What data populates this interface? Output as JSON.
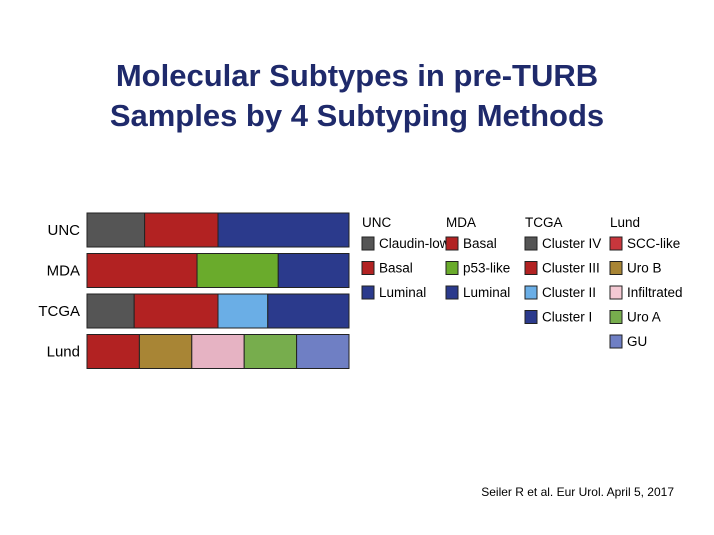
{
  "slide": {
    "title_line1": "Molecular Subtypes in pre-TURB",
    "title_line2": "Samples by 4 Subtyping Methods",
    "citation": "Seiler R et al. Eur Urol. April 5, 2017"
  },
  "chart_data": {
    "type": "bar",
    "orientation": "horizontal",
    "stacked": true,
    "normalized": true,
    "title": "",
    "xlabel": "",
    "ylabel": "",
    "grid": false,
    "legend_placement": "right",
    "categories": [
      "UNC",
      "MDA",
      "TCGA",
      "Lund"
    ],
    "methods": [
      {
        "name": "UNC",
        "segments": [
          {
            "name": "Claudin-low",
            "color": "#555555",
            "value": 0.22
          },
          {
            "name": "Basal",
            "color": "#b22222",
            "value": 0.28
          },
          {
            "name": "Luminal",
            "color": "#2b3a8c",
            "value": 0.5
          }
        ]
      },
      {
        "name": "MDA",
        "segments": [
          {
            "name": "Basal",
            "color": "#b22222",
            "value": 0.42
          },
          {
            "name": "p53-like",
            "color": "#6aab2c",
            "value": 0.31
          },
          {
            "name": "Luminal",
            "color": "#2b3a8c",
            "value": 0.27
          }
        ]
      },
      {
        "name": "TCGA",
        "segments": [
          {
            "name": "Cluster IV",
            "color": "#555555",
            "value": 0.18
          },
          {
            "name": "Cluster III",
            "color": "#b22222",
            "value": 0.32
          },
          {
            "name": "Cluster II",
            "color": "#6aaee6",
            "value": 0.19
          },
          {
            "name": "Cluster I",
            "color": "#2b3a8c",
            "value": 0.31
          }
        ]
      },
      {
        "name": "Lund",
        "segments": [
          {
            "name": "SCC-like",
            "color": "#b22222",
            "value": 0.2
          },
          {
            "name": "Uro B",
            "color": "#a88535",
            "value": 0.2
          },
          {
            "name": "Infiltrated",
            "color": "#e6b3c3",
            "value": 0.2
          },
          {
            "name": "Uro A",
            "color": "#77ad4d",
            "value": 0.2
          },
          {
            "name": "GU",
            "color": "#6f7fc4",
            "value": 0.2
          }
        ]
      }
    ],
    "legend": [
      {
        "title": "UNC",
        "items": [
          {
            "label": "Claudin-low",
            "color": "#555555"
          },
          {
            "label": "Basal",
            "color": "#b22222"
          },
          {
            "label": "Luminal",
            "color": "#2b3a8c"
          }
        ]
      },
      {
        "title": "MDA",
        "items": [
          {
            "label": "Basal",
            "color": "#b22222"
          },
          {
            "label": "p53-like",
            "color": "#6aab2c"
          },
          {
            "label": "Luminal",
            "color": "#2b3a8c"
          }
        ]
      },
      {
        "title": "TCGA",
        "items": [
          {
            "label": "Cluster IV",
            "color": "#555555"
          },
          {
            "label": "Cluster III",
            "color": "#b22222"
          },
          {
            "label": "Cluster II",
            "color": "#6aaee6"
          },
          {
            "label": "Cluster I",
            "color": "#2b3a8c"
          }
        ]
      },
      {
        "title": "Lund",
        "items": [
          {
            "label": "SCC-like",
            "color": "#c8363c"
          },
          {
            "label": "Uro B",
            "color": "#a88535"
          },
          {
            "label": "Infiltrated",
            "color": "#f4c9d3"
          },
          {
            "label": "Uro A",
            "color": "#77ad4d"
          },
          {
            "label": "GU",
            "color": "#6f7fc4"
          }
        ]
      }
    ]
  }
}
